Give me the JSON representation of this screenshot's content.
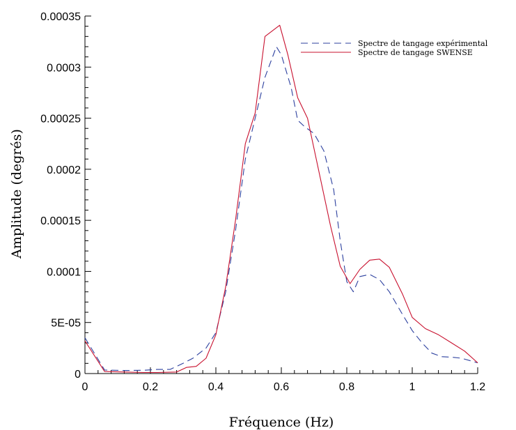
{
  "chart_data": {
    "type": "line",
    "title": "",
    "xlabel": "Fréquence (Hz)",
    "ylabel": "Amplitude (degrés)",
    "xlim": [
      0,
      1.2
    ],
    "ylim": [
      0,
      0.00035
    ],
    "grid": false,
    "legend_position": "top-right",
    "x_ticks": [
      {
        "value": 0,
        "label": "0"
      },
      {
        "value": 0.2,
        "label": "0.2"
      },
      {
        "value": 0.4,
        "label": "0.4"
      },
      {
        "value": 0.6,
        "label": "0.6"
      },
      {
        "value": 0.8,
        "label": "0.8"
      },
      {
        "value": 1.0,
        "label": "1"
      },
      {
        "value": 1.2,
        "label": "1.2"
      }
    ],
    "y_ticks": [
      {
        "value": 0,
        "label": "0"
      },
      {
        "value": 5e-05,
        "label": "5E-05"
      },
      {
        "value": 0.0001,
        "label": "0.0001"
      },
      {
        "value": 0.00015,
        "label": "0.00015"
      },
      {
        "value": 0.0002,
        "label": "0.0002"
      },
      {
        "value": 0.00025,
        "label": "0.00025"
      },
      {
        "value": 0.0003,
        "label": "0.0003"
      },
      {
        "value": 0.00035,
        "label": "0.00035"
      }
    ],
    "series": [
      {
        "name": "Spectre de tangage expérimental",
        "color": "#2b3f9e",
        "dash": "dashed",
        "points": [
          [
            0,
            3.5e-05
          ],
          [
            0.06,
            3.5e-06
          ],
          [
            0.12,
            3e-06
          ],
          [
            0.18,
            3.2e-06
          ],
          [
            0.22,
            4e-06
          ],
          [
            0.26,
            4e-06
          ],
          [
            0.3,
            1e-05
          ],
          [
            0.33,
            1.5e-05
          ],
          [
            0.37,
            2.5e-05
          ],
          [
            0.4,
            4e-05
          ],
          [
            0.43,
            8e-05
          ],
          [
            0.46,
            0.00014
          ],
          [
            0.49,
            0.00021
          ],
          [
            0.52,
            0.00025
          ],
          [
            0.55,
            0.00029
          ],
          [
            0.585,
            0.00032
          ],
          [
            0.6,
            0.000312
          ],
          [
            0.63,
            0.00028
          ],
          [
            0.65,
            0.000248
          ],
          [
            0.67,
            0.000242
          ],
          [
            0.7,
            0.000235
          ],
          [
            0.73,
            0.000218
          ],
          [
            0.76,
            0.00018
          ],
          [
            0.78,
            0.00013
          ],
          [
            0.8,
            9e-05
          ],
          [
            0.82,
            8e-05
          ],
          [
            0.84,
            9.5e-05
          ],
          [
            0.87,
            9.7e-05
          ],
          [
            0.9,
            9.2e-05
          ],
          [
            0.93,
            8e-05
          ],
          [
            0.97,
            5.8e-05
          ],
          [
            1.0,
            4.2e-05
          ],
          [
            1.03,
            3e-05
          ],
          [
            1.06,
            2e-05
          ],
          [
            1.09,
            1.65e-05
          ],
          [
            1.12,
            1.6e-05
          ],
          [
            1.15,
            1.5e-05
          ],
          [
            1.2,
            1.05e-05
          ]
        ]
      },
      {
        "name": "Spectre de tangage SWENSE",
        "color": "#c8102e",
        "dash": "solid",
        "points": [
          [
            0,
            3.2e-05
          ],
          [
            0.06,
            2e-06
          ],
          [
            0.12,
            1.5e-06
          ],
          [
            0.18,
            1e-06
          ],
          [
            0.22,
            1e-06
          ],
          [
            0.28,
            1.5e-06
          ],
          [
            0.31,
            6e-06
          ],
          [
            0.34,
            7e-06
          ],
          [
            0.37,
            1.5e-05
          ],
          [
            0.4,
            3.8e-05
          ],
          [
            0.43,
            8.5e-05
          ],
          [
            0.46,
            0.00015
          ],
          [
            0.49,
            0.000225
          ],
          [
            0.52,
            0.000255
          ],
          [
            0.55,
            0.00033
          ],
          [
            0.595,
            0.000341
          ],
          [
            0.62,
            0.000312
          ],
          [
            0.65,
            0.00027
          ],
          [
            0.68,
            0.00025
          ],
          [
            0.71,
            0.000205
          ],
          [
            0.75,
            0.000145
          ],
          [
            0.78,
            0.000105
          ],
          [
            0.81,
            8.8e-05
          ],
          [
            0.84,
            0.000102
          ],
          [
            0.87,
            0.000111
          ],
          [
            0.9,
            0.000112
          ],
          [
            0.93,
            0.000104
          ],
          [
            0.97,
            7.8e-05
          ],
          [
            1.0,
            5.5e-05
          ],
          [
            1.04,
            4.4e-05
          ],
          [
            1.08,
            3.8e-05
          ],
          [
            1.12,
            3e-05
          ],
          [
            1.16,
            2.2e-05
          ],
          [
            1.2,
            1.05e-05
          ]
        ]
      }
    ]
  }
}
